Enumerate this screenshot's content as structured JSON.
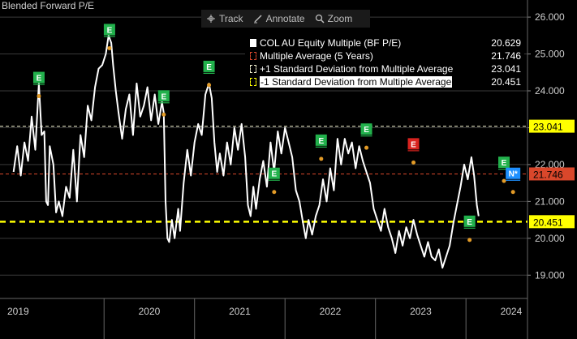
{
  "title": "Blended Forward P/E",
  "toolbar": {
    "track_label": "Track",
    "annotate_label": "Annotate",
    "zoom_label": "Zoom"
  },
  "legend": [
    {
      "name": "COL AU Equity Multiple (BF P/E)",
      "value": "20.629",
      "color": "#ffffff",
      "style": "solid"
    },
    {
      "name": "Multiple Average (5 Years)",
      "value": "21.746",
      "color": "#d9472b",
      "style": "dashed"
    },
    {
      "name": "+1 Standard Deviation from Multiple Average",
      "value": "23.041",
      "color": "#f2f2d0",
      "style": "dashed"
    },
    {
      "name": "-1 Standard Deviation from Multiple Average",
      "value": "20.451",
      "color": "#ffff00",
      "style": "dashed"
    }
  ],
  "chart_data": {
    "type": "line",
    "title": "Blended Forward P/E",
    "ylim": [
      18.5,
      26.2
    ],
    "yticks": [
      "19.000",
      "20.000",
      "21.000",
      "22.000",
      "23.000",
      "24.000",
      "25.000",
      "26.000"
    ],
    "xticks": [
      "2019",
      "2020",
      "2021",
      "2022",
      "2023",
      "2024"
    ],
    "series": [
      {
        "name": "COL AU Equity Multiple (BF P/E)",
        "color": "#ffffff",
        "points": [
          [
            2019.0,
            21.8
          ],
          [
            2019.04,
            22.5
          ],
          [
            2019.08,
            21.7
          ],
          [
            2019.12,
            22.6
          ],
          [
            2019.16,
            22.1
          ],
          [
            2019.2,
            23.3
          ],
          [
            2019.24,
            22.4
          ],
          [
            2019.28,
            24.2
          ],
          [
            2019.31,
            22.8
          ],
          [
            2019.34,
            22.9
          ],
          [
            2019.36,
            21.0
          ],
          [
            2019.38,
            20.9
          ],
          [
            2019.4,
            22.5
          ],
          [
            2019.44,
            22.0
          ],
          [
            2019.47,
            20.7
          ],
          [
            2019.5,
            21.0
          ],
          [
            2019.54,
            20.6
          ],
          [
            2019.58,
            21.4
          ],
          [
            2019.62,
            21.1
          ],
          [
            2019.66,
            22.4
          ],
          [
            2019.7,
            21.0
          ],
          [
            2019.74,
            22.8
          ],
          [
            2019.78,
            22.2
          ],
          [
            2019.82,
            23.6
          ],
          [
            2019.86,
            23.2
          ],
          [
            2019.9,
            24.1
          ],
          [
            2019.94,
            24.6
          ],
          [
            2019.98,
            24.7
          ],
          [
            2020.02,
            25.0
          ],
          [
            2020.05,
            25.5
          ],
          [
            2020.08,
            25.3
          ],
          [
            2020.1,
            24.7
          ],
          [
            2020.13,
            24.0
          ],
          [
            2020.16,
            23.4
          ],
          [
            2020.2,
            22.7
          ],
          [
            2020.24,
            23.5
          ],
          [
            2020.28,
            23.9
          ],
          [
            2020.32,
            22.8
          ],
          [
            2020.36,
            24.2
          ],
          [
            2020.4,
            23.3
          ],
          [
            2020.44,
            23.6
          ],
          [
            2020.48,
            24.1
          ],
          [
            2020.52,
            23.2
          ],
          [
            2020.56,
            23.9
          ],
          [
            2020.6,
            23.1
          ],
          [
            2020.64,
            23.7
          ],
          [
            2020.66,
            23.4
          ],
          [
            2020.68,
            21.0
          ],
          [
            2020.7,
            20.0
          ],
          [
            2020.72,
            19.9
          ],
          [
            2020.75,
            20.5
          ],
          [
            2020.78,
            20.0
          ],
          [
            2020.82,
            20.8
          ],
          [
            2020.84,
            20.2
          ],
          [
            2020.88,
            21.5
          ],
          [
            2020.92,
            22.4
          ],
          [
            2020.96,
            21.7
          ],
          [
            2021.0,
            22.6
          ],
          [
            2021.04,
            23.1
          ],
          [
            2021.08,
            22.8
          ],
          [
            2021.12,
            23.9
          ],
          [
            2021.16,
            24.2
          ],
          [
            2021.19,
            23.8
          ],
          [
            2021.22,
            22.6
          ],
          [
            2021.25,
            21.8
          ],
          [
            2021.28,
            22.3
          ],
          [
            2021.32,
            21.7
          ],
          [
            2021.36,
            22.6
          ],
          [
            2021.4,
            22.0
          ],
          [
            2021.44,
            23.0
          ],
          [
            2021.48,
            22.4
          ],
          [
            2021.52,
            23.1
          ],
          [
            2021.56,
            22.2
          ],
          [
            2021.59,
            20.9
          ],
          [
            2021.62,
            20.6
          ],
          [
            2021.65,
            21.4
          ],
          [
            2021.68,
            20.8
          ],
          [
            2021.72,
            21.6
          ],
          [
            2021.76,
            22.1
          ],
          [
            2021.8,
            21.4
          ],
          [
            2021.84,
            22.6
          ],
          [
            2021.88,
            21.8
          ],
          [
            2021.92,
            22.9
          ],
          [
            2021.96,
            22.3
          ],
          [
            2022.0,
            23.0
          ],
          [
            2022.04,
            22.6
          ],
          [
            2022.08,
            22.2
          ],
          [
            2022.12,
            21.3
          ],
          [
            2022.16,
            21.0
          ],
          [
            2022.2,
            20.4
          ],
          [
            2022.23,
            20.0
          ],
          [
            2022.26,
            20.5
          ],
          [
            2022.3,
            20.1
          ],
          [
            2022.34,
            20.6
          ],
          [
            2022.38,
            20.9
          ],
          [
            2022.42,
            21.6
          ],
          [
            2022.46,
            21.0
          ],
          [
            2022.5,
            21.9
          ],
          [
            2022.54,
            21.3
          ],
          [
            2022.58,
            22.7
          ],
          [
            2022.62,
            22.0
          ],
          [
            2022.66,
            22.7
          ],
          [
            2022.7,
            22.3
          ],
          [
            2022.74,
            22.6
          ],
          [
            2022.78,
            21.9
          ],
          [
            2022.82,
            22.5
          ],
          [
            2022.86,
            22.1
          ],
          [
            2022.9,
            21.8
          ],
          [
            2022.94,
            21.5
          ],
          [
            2022.98,
            20.8
          ],
          [
            2023.02,
            20.5
          ],
          [
            2023.06,
            20.2
          ],
          [
            2023.1,
            20.8
          ],
          [
            2023.14,
            20.3
          ],
          [
            2023.18,
            20.0
          ],
          [
            2023.22,
            19.6
          ],
          [
            2023.26,
            20.2
          ],
          [
            2023.3,
            19.8
          ],
          [
            2023.34,
            20.3
          ],
          [
            2023.38,
            20.0
          ],
          [
            2023.42,
            20.5
          ],
          [
            2023.46,
            20.1
          ],
          [
            2023.5,
            19.8
          ],
          [
            2023.54,
            19.5
          ],
          [
            2023.58,
            19.9
          ],
          [
            2023.62,
            19.5
          ],
          [
            2023.66,
            19.4
          ],
          [
            2023.7,
            19.7
          ],
          [
            2023.74,
            19.2
          ],
          [
            2023.78,
            19.5
          ],
          [
            2023.82,
            19.8
          ],
          [
            2023.86,
            20.4
          ],
          [
            2023.9,
            20.9
          ],
          [
            2023.94,
            21.4
          ],
          [
            2023.98,
            22.0
          ],
          [
            2024.02,
            21.6
          ],
          [
            2024.06,
            22.2
          ],
          [
            2024.09,
            21.7
          ],
          [
            2024.12,
            20.9
          ],
          [
            2024.14,
            20.6
          ]
        ]
      }
    ],
    "reference_lines": [
      {
        "name": "Multiple Average (5 Years)",
        "value": 21.746,
        "label": "21.746",
        "color": "#d9472b",
        "label_bg": "#d9472b",
        "label_color": "#000000"
      },
      {
        "name": "+1 Standard Deviation from Multiple Average",
        "value": 23.041,
        "label": "23.041",
        "color": "#f2f2d0",
        "label_bg": "#ffff00",
        "label_color": "#000000"
      },
      {
        "name": "-1 Standard Deviation from Multiple Average",
        "value": 20.451,
        "label": "20.451",
        "color": "#ffff00",
        "label_bg": "#ffff00",
        "label_color": "#000000"
      }
    ],
    "current_value": {
      "value": 20.629,
      "label": "20.629"
    },
    "event_markers": [
      {
        "x": 2019.28,
        "y": 23.9,
        "type": "E",
        "color": "#22b14c"
      },
      {
        "x": 2020.06,
        "y": 25.2,
        "type": "E",
        "color": "#22b14c"
      },
      {
        "x": 2020.66,
        "y": 23.4,
        "type": "E",
        "color": "#22b14c"
      },
      {
        "x": 2021.16,
        "y": 24.2,
        "type": "E",
        "color": "#22b14c"
      },
      {
        "x": 2021.88,
        "y": 21.3,
        "type": "E",
        "color": "#22b14c"
      },
      {
        "x": 2022.4,
        "y": 22.2,
        "type": "E",
        "color": "#22b14c"
      },
      {
        "x": 2022.9,
        "y": 22.5,
        "type": "E",
        "color": "#22b14c"
      },
      {
        "x": 2023.42,
        "y": 22.1,
        "type": "E",
        "color": "#d9231f"
      },
      {
        "x": 2024.04,
        "y": 20.0,
        "type": "E",
        "color": "#22b14c"
      },
      {
        "x": 2024.42,
        "y": 21.6,
        "type": "E",
        "color": "#22b14c"
      },
      {
        "x": 2024.52,
        "y": 21.3,
        "type": "N*",
        "color": "#1e90ff"
      }
    ]
  },
  "colors": {
    "background": "#000000",
    "grid": "#3a3a3a",
    "axis_text": "#cfcfcf"
  }
}
